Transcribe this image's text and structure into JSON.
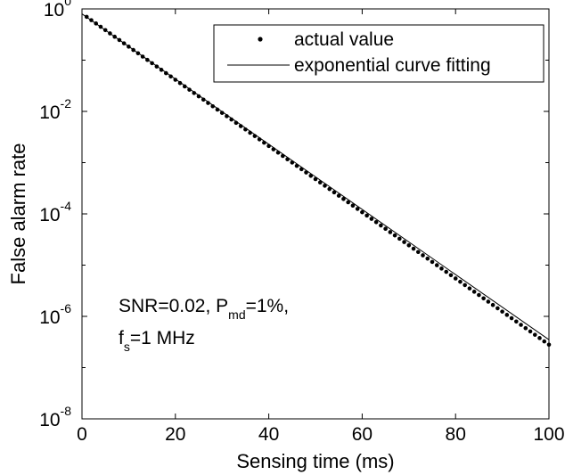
{
  "chart_data": {
    "type": "scatter",
    "xlabel": "Sensing time (ms)",
    "ylabel": "False alarm rate",
    "xlim": [
      0,
      100
    ],
    "ylim": [
      1e-08,
      1
    ],
    "yscale": "log",
    "grid": false,
    "legend_position": "top-right",
    "x_ticks": [
      "0",
      "20",
      "40",
      "60",
      "80",
      "100"
    ],
    "y_ticks": [
      {
        "base": "10",
        "exp": "0"
      },
      {
        "base": "10",
        "exp": "-2"
      },
      {
        "base": "10",
        "exp": "-4"
      },
      {
        "base": "10",
        "exp": "-6"
      },
      {
        "base": "10",
        "exp": "-8"
      }
    ],
    "series": [
      {
        "name": "actual value",
        "style": "dots",
        "color": "#000000",
        "x_start": 1,
        "x_end": 100,
        "x_step": 1,
        "y_at_x_start": 0.7,
        "y_at_x_end": 2.8e-07
      },
      {
        "name": "exponential curve fitting",
        "style": "line",
        "color": "#000000",
        "x": [
          0,
          100
        ],
        "y": [
          0.8,
          3.5e-07
        ]
      }
    ],
    "annotation": {
      "snr_text": "SNR=0.02, P",
      "pmd_sub": "md",
      "pmd_value": "=1%,",
      "fs_base": "f",
      "fs_sub": "s",
      "fs_value": "=1 MHz"
    }
  }
}
